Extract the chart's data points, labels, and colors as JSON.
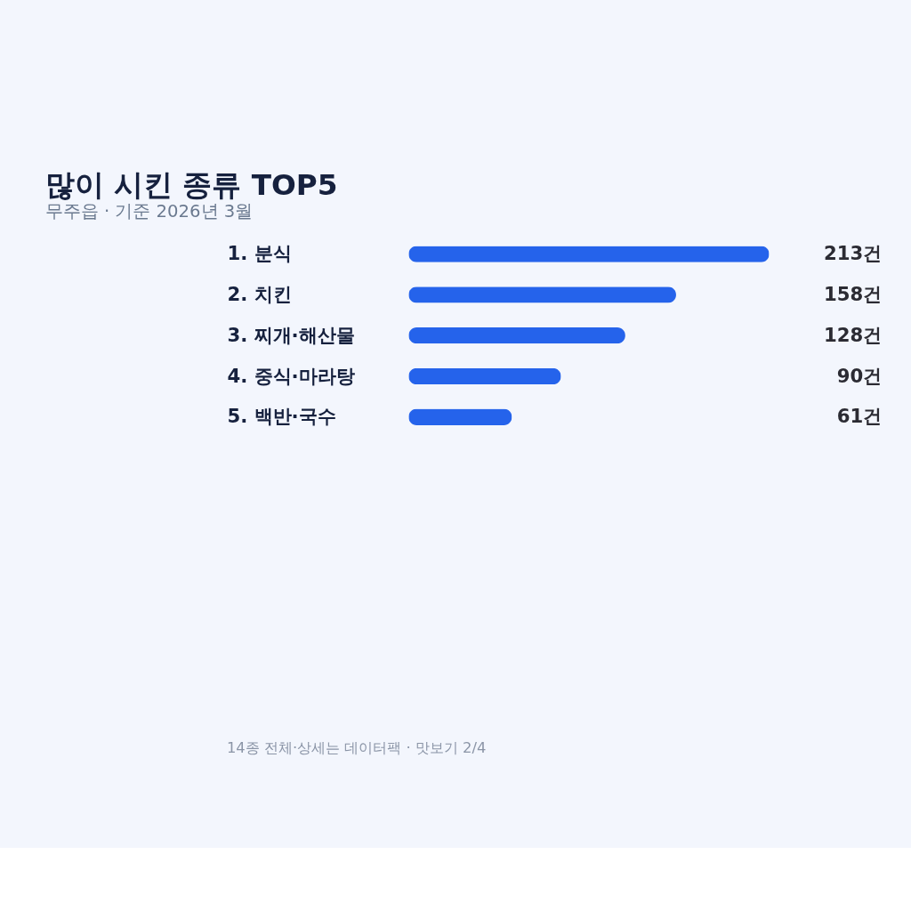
{
  "chart_data": {
    "type": "bar",
    "orientation": "horizontal",
    "title": "많이 시킨 종류 TOP5",
    "subtitle": "무주읍 · 기준 2026년 3월",
    "categories": [
      "1.  분식",
      "2.  치킨",
      "3.  찌개·해산물",
      "4.  중식·마라탕",
      "5.  백반·국수"
    ],
    "values": [
      213,
      158,
      128,
      90,
      61
    ],
    "value_labels": [
      "213건",
      "158건",
      "128건",
      "90건",
      "61건"
    ],
    "color": "#2563eb",
    "xlim": [
      0,
      213
    ],
    "tick_labels": "y",
    "annotations": [
      "14종 전체·상세는 데이터팩 · 맛보기 2/4"
    ]
  }
}
